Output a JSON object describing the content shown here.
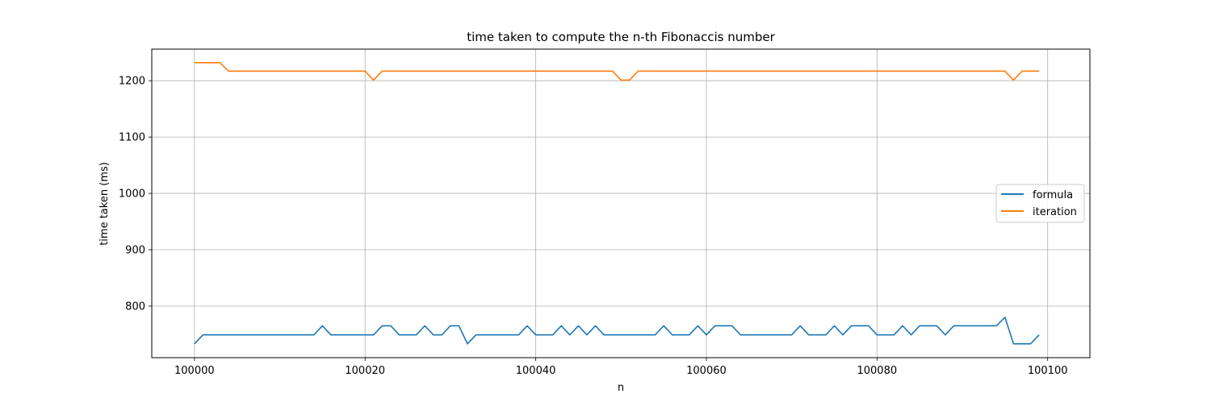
{
  "chart_data": {
    "type": "line",
    "title": "time taken to compute the n-th Fibonaccis number",
    "xlabel": "n",
    "ylabel": "time taken (ms)",
    "xlim": [
      99995,
      100104.95
    ],
    "ylim": [
      708.5,
      1256.0
    ],
    "xticks": [
      100000,
      100020,
      100040,
      100060,
      100080,
      100100
    ],
    "yticks": [
      800,
      900,
      1000,
      1100,
      1200
    ],
    "grid": true,
    "legend_position": "center-right",
    "x": [
      100000,
      100001,
      100002,
      100003,
      100004,
      100005,
      100006,
      100007,
      100008,
      100009,
      100010,
      100011,
      100012,
      100013,
      100014,
      100015,
      100016,
      100017,
      100018,
      100019,
      100020,
      100021,
      100022,
      100023,
      100024,
      100025,
      100026,
      100027,
      100028,
      100029,
      100030,
      100031,
      100032,
      100033,
      100034,
      100035,
      100036,
      100037,
      100038,
      100039,
      100040,
      100041,
      100042,
      100043,
      100044,
      100045,
      100046,
      100047,
      100048,
      100049,
      100050,
      100051,
      100052,
      100053,
      100054,
      100055,
      100056,
      100057,
      100058,
      100059,
      100060,
      100061,
      100062,
      100063,
      100064,
      100065,
      100066,
      100067,
      100068,
      100069,
      100070,
      100071,
      100072,
      100073,
      100074,
      100075,
      100076,
      100077,
      100078,
      100079,
      100080,
      100081,
      100082,
      100083,
      100084,
      100085,
      100086,
      100087,
      100088,
      100089,
      100090,
      100091,
      100092,
      100093,
      100094,
      100095,
      100096,
      100097,
      100098,
      100099
    ],
    "series": [
      {
        "name": "formula",
        "color": "#1f77b4",
        "values": [
          733,
          749,
          749,
          749,
          749,
          749,
          749,
          749,
          749,
          749,
          749,
          749,
          749,
          749,
          749,
          765,
          749,
          749,
          749,
          749,
          749,
          749,
          765,
          765,
          749,
          749,
          749,
          765,
          749,
          749,
          765,
          765,
          733,
          749,
          749,
          749,
          749,
          749,
          749,
          765,
          749,
          749,
          749,
          765,
          749,
          765,
          749,
          765,
          749,
          749,
          749,
          749,
          749,
          749,
          749,
          765,
          749,
          749,
          749,
          765,
          749,
          765,
          765,
          765,
          749,
          749,
          749,
          749,
          749,
          749,
          749,
          765,
          749,
          749,
          749,
          765,
          749,
          765,
          765,
          765,
          749,
          749,
          749,
          765,
          749,
          765,
          765,
          765,
          749,
          765,
          765,
          765,
          765,
          765,
          765,
          780,
          733,
          733,
          733,
          749
        ]
      },
      {
        "name": "iteration",
        "color": "#ff7f0e",
        "values": [
          1232,
          1232,
          1232,
          1232,
          1217,
          1217,
          1217,
          1217,
          1217,
          1217,
          1217,
          1217,
          1217,
          1217,
          1217,
          1217,
          1217,
          1217,
          1217,
          1217,
          1217,
          1201,
          1217,
          1217,
          1217,
          1217,
          1217,
          1217,
          1217,
          1217,
          1217,
          1217,
          1217,
          1217,
          1217,
          1217,
          1217,
          1217,
          1217,
          1217,
          1217,
          1217,
          1217,
          1217,
          1217,
          1217,
          1217,
          1217,
          1217,
          1217,
          1201,
          1201,
          1217,
          1217,
          1217,
          1217,
          1217,
          1217,
          1217,
          1217,
          1217,
          1217,
          1217,
          1217,
          1217,
          1217,
          1217,
          1217,
          1217,
          1217,
          1217,
          1217,
          1217,
          1217,
          1217,
          1217,
          1217,
          1217,
          1217,
          1217,
          1217,
          1217,
          1217,
          1217,
          1217,
          1217,
          1217,
          1217,
          1217,
          1217,
          1217,
          1217,
          1217,
          1217,
          1217,
          1217,
          1201,
          1217,
          1217,
          1217
        ]
      }
    ]
  }
}
